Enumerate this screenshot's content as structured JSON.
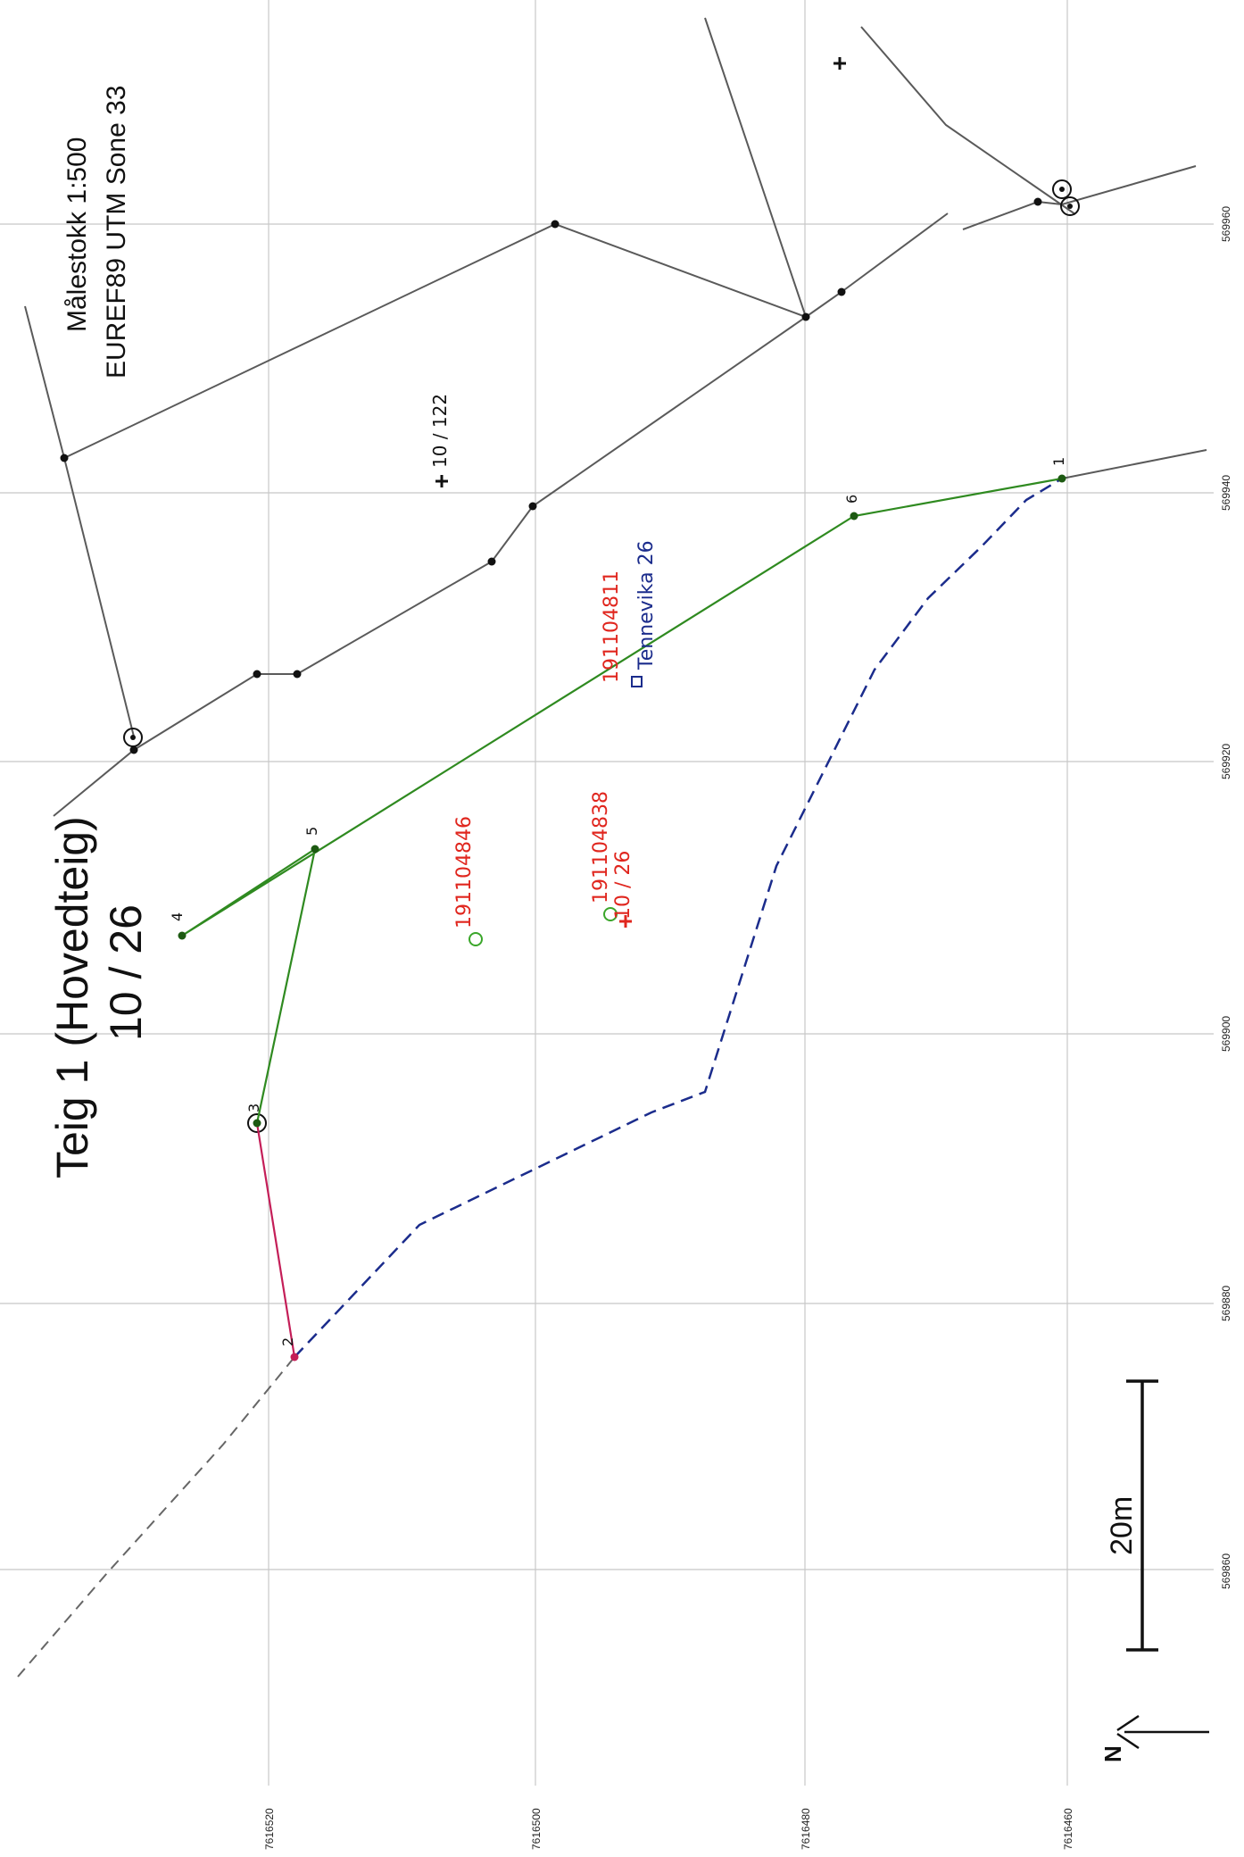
{
  "title": {
    "line1": "Teig 1 (Hovedteig)",
    "line2": "10 / 26"
  },
  "map_info": {
    "scale": "Målestokk 1:500",
    "crs": "EUREF89 UTM Sone 33"
  },
  "grid_labels": {
    "easting": [
      "569860",
      "569880",
      "569900",
      "569920",
      "569940",
      "569960"
    ],
    "northing": [
      "7616520",
      "7616500",
      "7616480",
      "7616460"
    ]
  },
  "scale_bar": {
    "label": "20m"
  },
  "north_arrow": {
    "label": "N",
    "icon": "north-arrow-icon"
  },
  "boundary_points": [
    "1",
    "2",
    "3",
    "4",
    "5",
    "6"
  ],
  "parcel_labels": [
    {
      "text": "191104846",
      "color": "#e0261e"
    },
    {
      "text": "191104838",
      "color": "#e0261e"
    },
    {
      "text": "10 / 26",
      "color": "#e0261e"
    },
    {
      "text": "191104811",
      "color": "#e0261e"
    },
    {
      "text": "Tennevika 26",
      "color": "#1b2c8c"
    },
    {
      "text": "10 / 122",
      "color": "#111111"
    }
  ],
  "colors": {
    "boundary": "#2f8a20",
    "boundary_segment": "#c41e58",
    "dashed_line": "#1b2c8c",
    "neighbour_lines": "#5a5a5a",
    "grid": "#c8c8c8"
  }
}
